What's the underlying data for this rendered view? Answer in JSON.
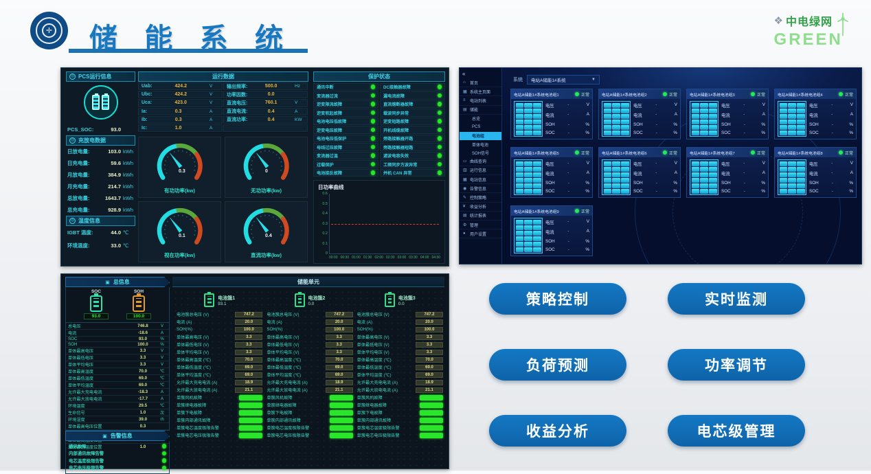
{
  "header": {
    "title": "储 能 系 统",
    "brand_name": "中电绿网",
    "brand_sub": "GREEN"
  },
  "pcs_panel": {
    "info_title": "PCS运行信息",
    "soc_label": "PCS_SOC:",
    "soc_value": "93.0",
    "energy_title": "充放电数据",
    "energy_rows": [
      {
        "label": "日放电量:",
        "value": "103.0",
        "unit": "kWh"
      },
      {
        "label": "日充电量:",
        "value": "59.6",
        "unit": "kWh"
      },
      {
        "label": "月放电量:",
        "value": "384.9",
        "unit": "kWh"
      },
      {
        "label": "月充电量:",
        "value": "214.7",
        "unit": "kWh"
      },
      {
        "label": "总放电量:",
        "value": "1643.7",
        "unit": "kWh"
      },
      {
        "label": "总充电量:",
        "value": "928.9",
        "unit": "kWh"
      }
    ],
    "temp_title": "温度信息",
    "temp_rows": [
      {
        "label": "IGBT 温度:",
        "value": "44.0",
        "unit": "℃"
      },
      {
        "label": "环境温度:",
        "value": "33.0",
        "unit": "℃"
      }
    ],
    "run_title": "运行数据",
    "run_rows": [
      {
        "l1": "Uab:",
        "v1": "424.2",
        "u1": "V",
        "l2": "输出频率:",
        "v2": "500.0",
        "u2": "Hz"
      },
      {
        "l1": "Ubc:",
        "v1": "424.2",
        "u1": "V",
        "l2": "功率因数:",
        "v2": "0.0",
        "u2": ""
      },
      {
        "l1": "Uca:",
        "v1": "423.0",
        "u1": "V",
        "l2": "直流电压:",
        "v2": "760.1",
        "u2": "V"
      },
      {
        "l1": "Ia:",
        "v1": "0.3",
        "u1": "A",
        "l2": "直流电流:",
        "v2": "0.4",
        "u2": "A"
      },
      {
        "l1": "Ib:",
        "v1": "0.3",
        "u1": "A",
        "l2": "直流功率:",
        "v2": "0.4",
        "u2": "KW"
      },
      {
        "l1": "Ic:",
        "v1": "1.0",
        "u1": "A",
        "l2": "",
        "v2": "",
        "u2": ""
      }
    ],
    "gauges": [
      {
        "title": "有功功率(kw)",
        "value": "0.3"
      },
      {
        "title": "无功功率(kw)",
        "value": "0"
      },
      {
        "title": "视在功率(kw)",
        "value": "0.1"
      },
      {
        "title": "直流功率(kw)",
        "value": "0.4"
      }
    ],
    "protect_title": "保护状态",
    "protect_left": [
      "通讯中断",
      "变流器过流",
      "逆变限流故障",
      "逆变软起故障",
      "电池电压低故障",
      "逆变电压故障",
      "电池电压低保护",
      "母线过压故障",
      "变流器过温",
      "过载保护",
      "电池接反故障"
    ],
    "protect_right": [
      "DC接触器故障",
      "漏电流故障",
      "直流熔断器故障",
      "载波同步异常",
      "逆变短路故障",
      "开机线缆故障",
      "旁路接触器开路",
      "旁路接触器短路",
      "滤波电容失效",
      "工频同步方波异常",
      "并机 CAN 异常"
    ],
    "power_curve": {
      "type": "line",
      "title": "日功率曲线",
      "yticks": [
        "0.6",
        "0.5",
        "0.4",
        "0.3",
        "0.2",
        "0.1",
        "0"
      ],
      "ylim": [
        0,
        0.6
      ],
      "xticks": [
        "00:00",
        "00:30",
        "01:00",
        "01:30",
        "02:00",
        "02:30",
        "03:00",
        "03:30",
        "04:00",
        "04:30"
      ],
      "series": [
        {
          "name": "日功率",
          "style": "red-dashed",
          "constant_value": 0.3
        }
      ]
    }
  },
  "bms_panel": {
    "collapse": "«",
    "sidebar": [
      {
        "icon": "⌂",
        "label": "首页",
        "active": false,
        "sub": false
      },
      {
        "icon": "▦",
        "label": "系统主页面",
        "active": false,
        "sub": false
      },
      {
        "icon": "≡",
        "label": "电站列表",
        "active": false,
        "sub": false
      },
      {
        "icon": "▤",
        "label": "储能",
        "active": false,
        "sub": false
      },
      {
        "icon": "",
        "label": "总览",
        "active": false,
        "sub": true
      },
      {
        "icon": "",
        "label": "PCS",
        "active": false,
        "sub": true
      },
      {
        "icon": "",
        "label": "电池组",
        "active": true,
        "sub": true
      },
      {
        "icon": "",
        "label": "单体电池",
        "active": false,
        "sub": true
      },
      {
        "icon": "",
        "label": "SOH信号",
        "active": false,
        "sub": true
      },
      {
        "icon": "▭",
        "label": "曲线查询",
        "active": false,
        "sub": false
      },
      {
        "icon": "▥",
        "label": "运行信息",
        "active": false,
        "sub": false
      },
      {
        "icon": "▦",
        "label": "电站信息",
        "active": false,
        "sub": false
      },
      {
        "icon": "◉",
        "label": "告警信息",
        "active": false,
        "sub": false
      },
      {
        "icon": "✎",
        "label": "控制策略",
        "active": false,
        "sub": false
      },
      {
        "icon": "¥",
        "label": "收益分析",
        "active": false,
        "sub": false
      },
      {
        "icon": "▤",
        "label": "统计报表",
        "active": false,
        "sub": false
      },
      {
        "icon": "⚙",
        "label": "管理",
        "active": false,
        "sub": false
      },
      {
        "icon": "●",
        "label": "用户设置",
        "active": false,
        "sub": false
      }
    ],
    "system_label": "系统",
    "system_selected": "电站A储能1#系统",
    "cards": [
      {
        "title": "电站A储能1#系统电池组1",
        "status": "正常"
      },
      {
        "title": "电站A储能1#系统电池组2",
        "status": "正常"
      },
      {
        "title": "电站A储能1#系统电池组3",
        "status": "正常"
      },
      {
        "title": "电站A储能1#系统电池组4",
        "status": "正常"
      },
      {
        "title": "电站A储能1#系统电池组5",
        "status": "正常"
      },
      {
        "title": "电站A储能1#系统电池组6",
        "status": "正常"
      },
      {
        "title": "电站A储能1#系统电池组7",
        "status": "正常"
      },
      {
        "title": "电站A储能1#系统电池组8",
        "status": "正常"
      },
      {
        "title": "电站A储能1#系统电池组9",
        "status": "正常"
      }
    ],
    "card_fields": [
      {
        "label": "电压",
        "value": "-",
        "unit": "V"
      },
      {
        "label": "电流",
        "value": "-",
        "unit": "A"
      },
      {
        "label": "SOH",
        "value": "-",
        "unit": "%"
      },
      {
        "label": "SOC",
        "value": "-",
        "unit": "%"
      }
    ]
  },
  "cell_panel": {
    "info_title": "总信息",
    "soc_label": "SOC",
    "soc_value": "93.0",
    "soh_label": "SOH",
    "soh_value": "100.0",
    "info_rows": [
      {
        "label": "总电压",
        "value": "746.8",
        "unit": "V"
      },
      {
        "label": "电流",
        "value": "-18.6",
        "unit": "A"
      },
      {
        "label": "SOC",
        "value": "93.0",
        "unit": "%"
      },
      {
        "label": "SOH",
        "value": "100.0",
        "unit": "%"
      },
      {
        "label": "单体最高电压",
        "value": "3.3",
        "unit": "V"
      },
      {
        "label": "单体最低电压",
        "value": "3.3",
        "unit": "V"
      },
      {
        "label": "单体平均电压",
        "value": "3.3",
        "unit": "V"
      },
      {
        "label": "单体最高温度",
        "value": "70.0",
        "unit": "℃"
      },
      {
        "label": "单体最低温度",
        "value": "69.0",
        "unit": "℃"
      },
      {
        "label": "单体平均温度",
        "value": "69.0",
        "unit": "℃"
      },
      {
        "label": "允许最大充电电流",
        "value": "-18.3",
        "unit": "A"
      },
      {
        "label": "允许最大放电电流",
        "value": "-17.7",
        "unit": "A"
      },
      {
        "label": "环境温度",
        "value": "29.5",
        "unit": "℃"
      },
      {
        "label": "生命信号",
        "value": "1.0",
        "unit": "次"
      },
      {
        "label": "环境湿度",
        "value": "39.0",
        "unit": "rh"
      },
      {
        "label": "单体最高电压位置",
        "value": "0.3",
        "unit": ""
      },
      {
        "label": "单体最低电压位置",
        "value": "0.0",
        "unit": ""
      },
      {
        "label": "单体最高温度位置",
        "value": "1.0",
        "unit": ""
      },
      {
        "label": "单体最低温度位置",
        "value": "1.0",
        "unit": ""
      }
    ],
    "alarm_title": "告警信息",
    "alarm_rows": [
      "通讯故障",
      "内部通讯故障告警",
      "电芯温度极限告警",
      "电芯电压极限告警"
    ],
    "unit_title": "储能单元",
    "value_labels": [
      "电池簇总电压 (V)",
      "电流 (A)",
      "SOH(%)",
      "单体最高电压 (V)",
      "单体最低电压 (V)",
      "单体平均电压 (V)",
      "单体最高温度 (℃)",
      "单体最低温度 (℃)",
      "单体平均温度 (℃)",
      "允许最大充电电流 (A)",
      "允许最大放电电流 (A)"
    ],
    "status_labels": [
      "单簇风机故障",
      "单簇继电器故障",
      "单簇下电故障",
      "单簇内部通讯故障",
      "单簇电芯温度极限告警",
      "单簇电芯电压极限告警"
    ],
    "clusters": [
      {
        "name": "电池簇1",
        "soc": "93.1",
        "values": [
          "747.2",
          "20.0",
          "100.0",
          "3.3",
          "3.3",
          "3.3",
          "70.0",
          "69.0",
          "69.0",
          "18.9",
          "21.1"
        ]
      },
      {
        "name": "电池簇2",
        "soc": "0.0",
        "values": [
          "747.2",
          "20.0",
          "100.0",
          "3.3",
          "3.3",
          "3.3",
          "70.0",
          "69.0",
          "69.0",
          "18.9",
          "21.1"
        ]
      },
      {
        "name": "电池簇3",
        "soc": "0.0",
        "values": [
          "747.2",
          "20.0",
          "100.0",
          "3.3",
          "3.3",
          "3.3",
          "70.0",
          "69.0",
          "69.0",
          "18.9",
          "21.1"
        ]
      }
    ]
  },
  "features": {
    "buttons": [
      "策略控制",
      "实时监测",
      "负荷预测",
      "功率调节",
      "收益分析",
      "电芯级管理"
    ]
  },
  "colors": {
    "accent_blue": "#1879c1",
    "button_blue": "#1173bb",
    "status_green": "#25e625",
    "value_orange": "#e9b53f",
    "cyan_label": "#35cfe0"
  }
}
